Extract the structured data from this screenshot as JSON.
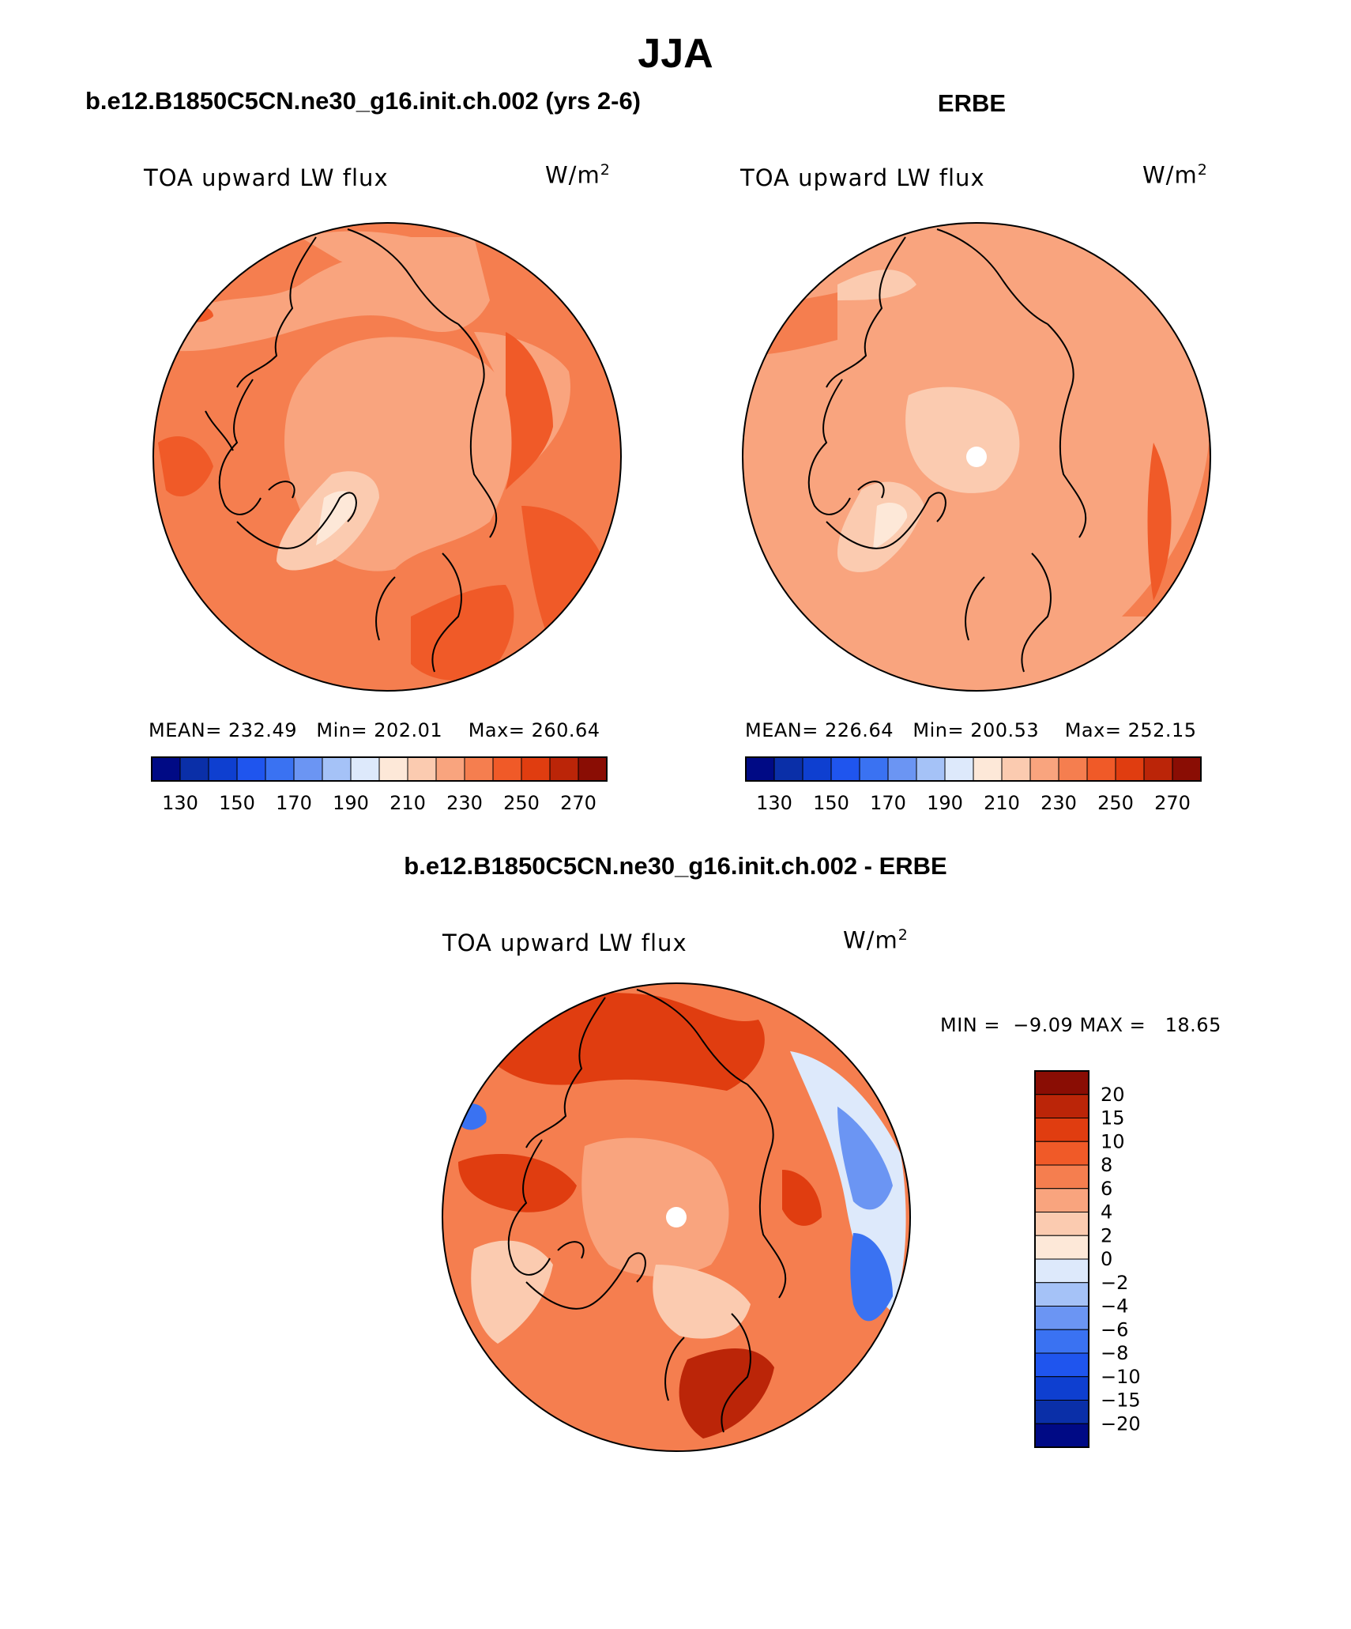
{
  "figure_title": "JJA",
  "panels": {
    "model": {
      "title": "b.e12.B1850C5CN.ne30_g16.init.ch.002 (yrs 2-6)",
      "variable": "TOA upward LW flux",
      "units": "W/m",
      "units_exp": "2",
      "mean_label": "MEAN=",
      "mean": "232.49",
      "min_label": "Min=",
      "min": "202.01",
      "max_label": "Max=",
      "max": "260.64"
    },
    "obs": {
      "title": "ERBE",
      "variable": "TOA upward LW flux",
      "units": "W/m",
      "units_exp": "2",
      "mean_label": "MEAN=",
      "mean": "226.64",
      "min_label": "Min=",
      "min": "200.53",
      "max_label": "Max=",
      "max": "252.15"
    },
    "diff": {
      "title": "b.e12.B1850C5CN.ne30_g16.init.ch.002 - ERBE",
      "variable": "TOA upward LW flux",
      "units": "W/m",
      "units_exp": "2",
      "min_label": "MIN =",
      "min": "−9.09",
      "max_label": "MAX =",
      "max": "18.65"
    }
  },
  "colorbar_abs": {
    "labels": [
      "130",
      "150",
      "170",
      "190",
      "210",
      "230",
      "250",
      "270"
    ],
    "colors": [
      "#000a85",
      "#0a2fa8",
      "#0e3fd0",
      "#1f55ee",
      "#3a72f2",
      "#6b95f3",
      "#a5c2f7",
      "#dde9fb",
      "#fde8d8",
      "#fbcbb0",
      "#f9a47e",
      "#f57e4f",
      "#f05a28",
      "#e03d10",
      "#bb2508",
      "#8a0d04"
    ]
  },
  "colorbar_diff": {
    "labels": [
      "20",
      "15",
      "10",
      "8",
      "6",
      "4",
      "2",
      "0",
      "−2",
      "−4",
      "−6",
      "−8",
      "−10",
      "−15",
      "−20"
    ],
    "colors_top_to_bottom": [
      "#8a0d04",
      "#bb2508",
      "#e03d10",
      "#f05a28",
      "#f57e4f",
      "#f9a47e",
      "#fbcbb0",
      "#fde8d8",
      "#dde9fb",
      "#a5c2f7",
      "#6b95f3",
      "#3a72f2",
      "#1f55ee",
      "#0e3fd0",
      "#0a2fa8",
      "#000a85"
    ]
  }
}
